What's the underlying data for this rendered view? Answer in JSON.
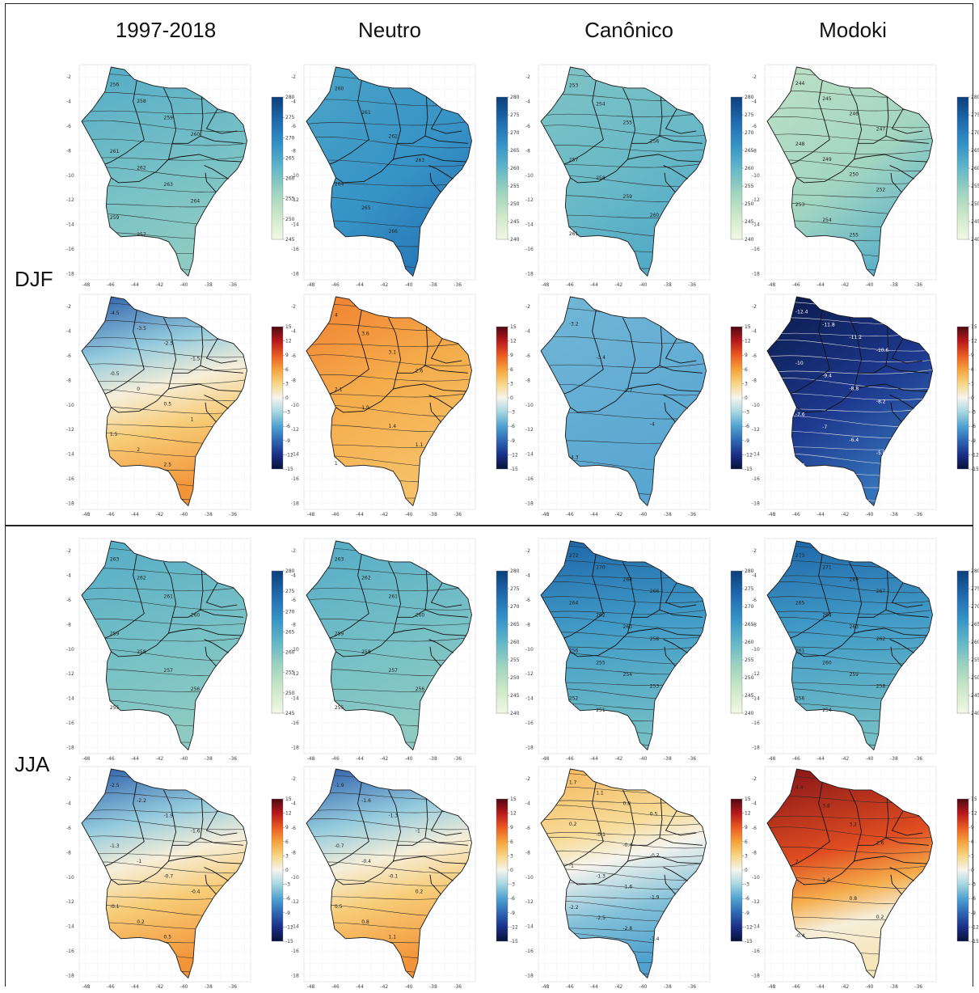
{
  "columns": [
    "1997-2018",
    "Neutro",
    "Canônico",
    "Modoki"
  ],
  "seasons": [
    "DJF",
    "JJA"
  ],
  "axes": {
    "x_ticks": [
      "-48",
      "-46",
      "-44",
      "-42",
      "-40",
      "-38",
      "-36"
    ],
    "y_ticks": [
      "-2",
      "-4",
      "-6",
      "-8",
      "-10",
      "-12",
      "-14",
      "-16",
      "-18"
    ]
  },
  "colorbars": {
    "mean_a": [
      "280",
      "275",
      "270",
      "265",
      "260",
      "255",
      "250",
      "245"
    ],
    "mean_b": [
      "280",
      "275",
      "270",
      "265",
      "260",
      "255",
      "250",
      "245",
      "240"
    ],
    "anomaly": [
      "15",
      "12",
      "9",
      "6",
      "3",
      "0",
      "-3",
      "-6",
      "-9",
      "-12",
      "-15"
    ]
  },
  "colors": {
    "mean_scale": [
      "#f2f8e4",
      "#cde8c8",
      "#9ed3c0",
      "#62b6c8",
      "#3592c6",
      "#1f6aae",
      "#0c3f7a"
    ],
    "anomaly_scale": [
      "#061238",
      "#1a2f87",
      "#2e67b3",
      "#4fa1cf",
      "#a6d6e0",
      "#f6f4ee",
      "#f7d685",
      "#f5a23d",
      "#ea5a22",
      "#b8191d",
      "#4d0a12"
    ]
  },
  "panels": [
    {
      "season": "DJF",
      "column": "1997-2018",
      "kind": "mean",
      "scale": "mean_a",
      "field": "mid",
      "labels": [
        "256",
        "258",
        "259",
        "260",
        "261",
        "262",
        "263",
        "264",
        "259",
        "257"
      ]
    },
    {
      "season": "DJF",
      "column": "Neutro",
      "kind": "mean",
      "scale": "mean_b",
      "field": "high",
      "labels": [
        "260",
        "261",
        "262",
        "263",
        "264",
        "265",
        "266"
      ]
    },
    {
      "season": "DJF",
      "column": "Canônico",
      "kind": "mean",
      "scale": "mean_b",
      "field": "lowmid",
      "labels": [
        "253",
        "254",
        "255",
        "256",
        "257",
        "258",
        "259",
        "260",
        "261"
      ]
    },
    {
      "season": "DJF",
      "column": "Modoki",
      "kind": "mean",
      "scale": "mean_b",
      "field": "low",
      "labels": [
        "244",
        "245",
        "246",
        "247",
        "248",
        "249",
        "250",
        "252",
        "253",
        "254",
        "255"
      ]
    },
    {
      "season": "DJF",
      "column": "1997-2018",
      "kind": "anomaly",
      "scale": "anomaly",
      "field": "bluetoorange",
      "labels": [
        "-4.5",
        "-3.5",
        "-2.5",
        "-1.5",
        "-0.5",
        "0",
        "0.5",
        "1",
        "1.5",
        "2",
        "2.5"
      ]
    },
    {
      "season": "DJF",
      "column": "Neutro",
      "kind": "anomaly",
      "scale": "anomaly",
      "field": "orange",
      "labels": [
        "4",
        "3.6",
        "3.1",
        "2.6",
        "2.1",
        "1.9",
        "1.4",
        "1.1",
        "1"
      ]
    },
    {
      "season": "DJF",
      "column": "Canônico",
      "kind": "anomaly",
      "scale": "anomaly",
      "field": "blue",
      "labels": [
        "-3.2",
        "-3.4",
        "-3.7",
        "-4",
        "-4.3"
      ]
    },
    {
      "season": "DJF",
      "column": "Modoki",
      "kind": "anomaly",
      "scale": "anomaly",
      "field": "darkblue",
      "labels": [
        "-12.4",
        "-11.8",
        "-11.2",
        "-10.6",
        "-10",
        "-9.4",
        "-8.8",
        "-8.2",
        "-7.6",
        "-7",
        "-6.4",
        "-5.8",
        "-5.2"
      ]
    },
    {
      "season": "JJA",
      "column": "1997-2018",
      "kind": "mean",
      "scale": "mean_a",
      "field": "mid",
      "labels": [
        "263",
        "262",
        "261",
        "260",
        "259",
        "258",
        "257",
        "256",
        "255"
      ]
    },
    {
      "season": "JJA",
      "column": "Neutro",
      "kind": "mean",
      "scale": "mean_b",
      "field": "mid",
      "labels": [
        "263",
        "262",
        "261",
        "260",
        "259",
        "258",
        "257",
        "256",
        "255"
      ]
    },
    {
      "season": "JJA",
      "column": "Canônico",
      "kind": "mean",
      "scale": "mean_b",
      "field": "highgrad",
      "labels": [
        "272",
        "270",
        "268",
        "266",
        "264",
        "262",
        "260",
        "258",
        "256",
        "255",
        "254",
        "253",
        "252",
        "251"
      ]
    },
    {
      "season": "JJA",
      "column": "Modoki",
      "kind": "mean",
      "scale": "mean_b",
      "field": "highgrad",
      "labels": [
        "273",
        "271",
        "269",
        "267",
        "265",
        "264",
        "263",
        "262",
        "261",
        "260",
        "259",
        "258",
        "256",
        "254"
      ]
    },
    {
      "season": "JJA",
      "column": "1997-2018",
      "kind": "anomaly",
      "scale": "anomaly",
      "field": "bluetoorange",
      "labels": [
        "-2.5",
        "-2.2",
        "-1.9",
        "-1.6",
        "-1.3",
        "-1",
        "-0.7",
        "-0.4",
        "-0.1",
        "0.2",
        "0.5"
      ]
    },
    {
      "season": "JJA",
      "column": "Neutro",
      "kind": "anomaly",
      "scale": "anomaly",
      "field": "bluetoorange",
      "labels": [
        "-1.9",
        "-1.6",
        "-1.3",
        "-1",
        "-0.7",
        "-0.4",
        "-0.1",
        "0.2",
        "0.5",
        "0.8",
        "1.1"
      ]
    },
    {
      "season": "JJA",
      "column": "Canônico",
      "kind": "anomaly",
      "scale": "anomaly",
      "field": "orangetoblue",
      "labels": [
        "1.7",
        "1.1",
        "0.8",
        "0.5",
        "0.2",
        "-0.1",
        "-0.4",
        "-0.7",
        "-1",
        "-1.3",
        "-1.6",
        "-1.9",
        "-2.2",
        "-2.5",
        "-2.8",
        "-3.4"
      ]
    },
    {
      "season": "JJA",
      "column": "Modoki",
      "kind": "anomaly",
      "scale": "anomaly",
      "field": "redtowhite",
      "labels": [
        "4.4",
        "3.8",
        "3.2",
        "2.6",
        "2",
        "1.4",
        "0.8",
        "0.2",
        "-0.4"
      ]
    }
  ]
}
